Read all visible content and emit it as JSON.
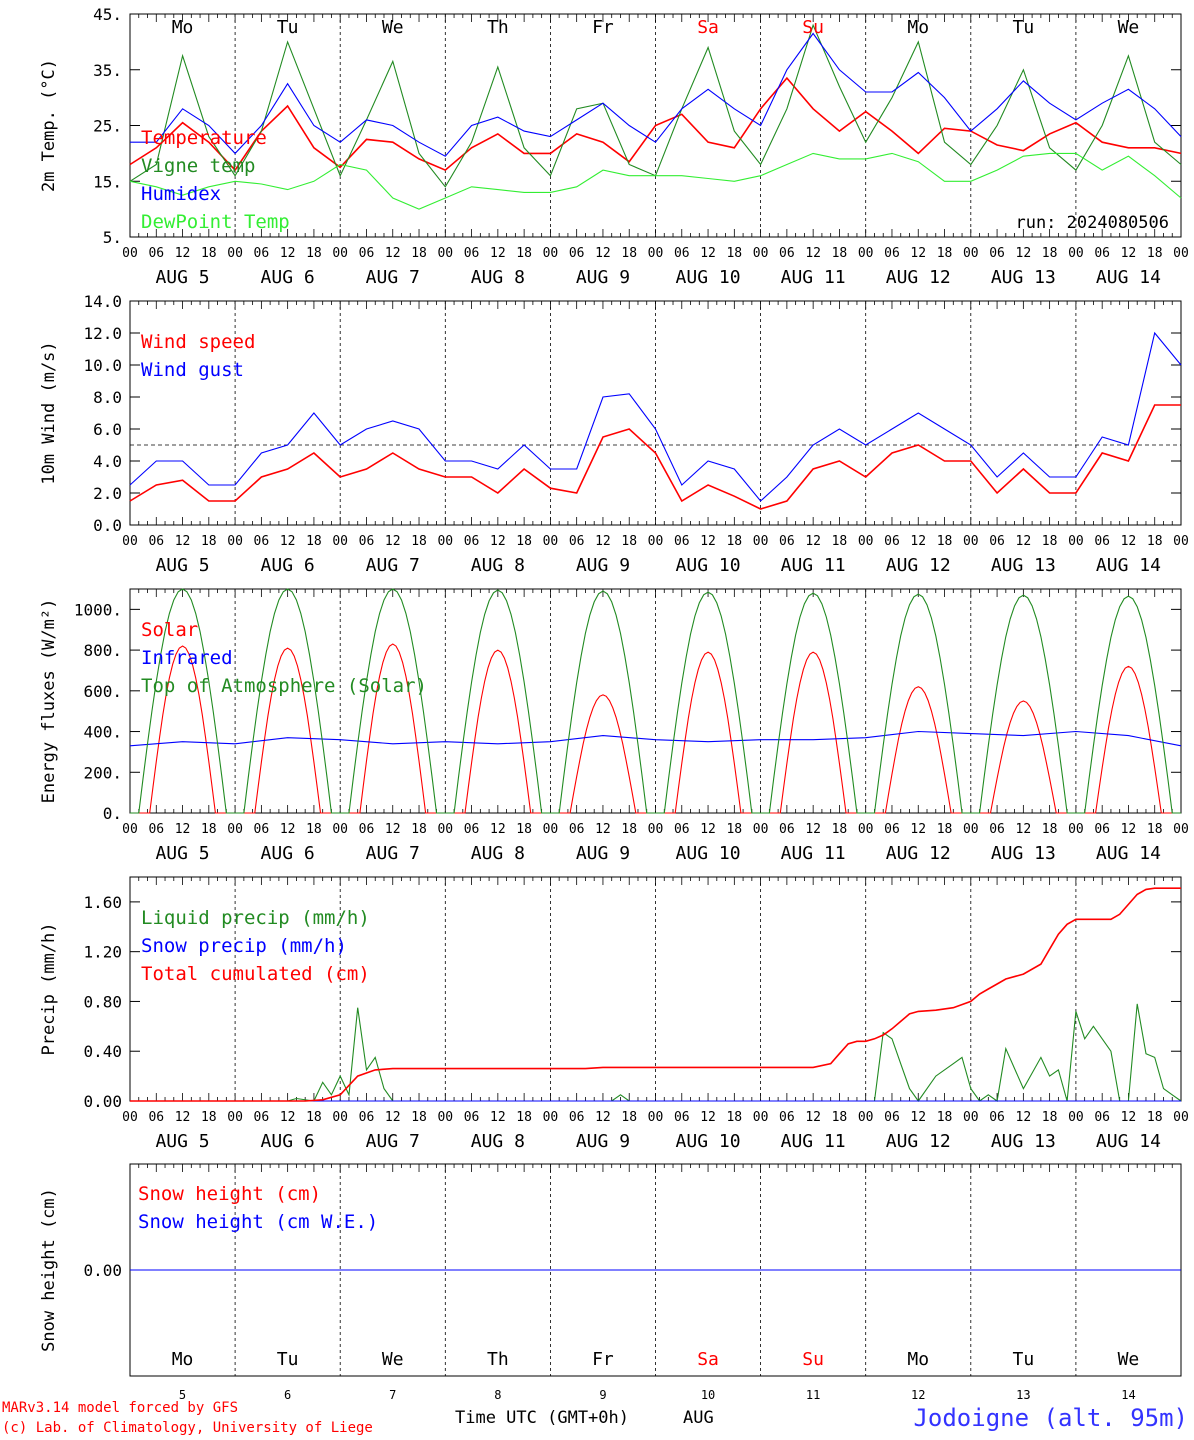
{
  "colors": {
    "temperature": "#ff0000",
    "vigne": "#228b22",
    "humidex": "#0000ff",
    "dewpoint": "#33ee33",
    "snow_height": "#ff0000",
    "snow_we": "#0000ff",
    "axis": "#000000",
    "weekend": "#ff0000",
    "station": "#3333ff"
  },
  "days": {
    "weekdays": [
      "Mo",
      "Tu",
      "We",
      "Th",
      "Fr",
      "Sa",
      "Su",
      "Mo",
      "Tu",
      "We"
    ],
    "weekend_flags": [
      false,
      false,
      false,
      false,
      false,
      true,
      true,
      false,
      false,
      false
    ],
    "date_labels": [
      "AUG  5",
      "AUG  6",
      "AUG  7",
      "AUG  8",
      "AUG  9",
      "AUG 10",
      "AUG 11",
      "AUG 12",
      "AUG 13",
      "AUG 14"
    ],
    "day_numbers": [
      "5",
      "6",
      "7",
      "8",
      "9",
      "10",
      "11",
      "12",
      "13",
      "14"
    ],
    "hour_labels": [
      "00",
      "06",
      "12",
      "18"
    ],
    "final_hour_label": "00"
  },
  "footer": {
    "xlabel": "Time UTC (GMT+0h)",
    "month": "AUG",
    "credit_line1": "MARv3.14 model forced by GFS",
    "credit_line2": "(c) Lab. of Climatology, University of Liege",
    "station": "Jodoigne (alt. 95m)"
  },
  "chart_data": [
    {
      "type": "line",
      "ylabel": "2m Temp. (°C)",
      "ylim": [
        5,
        45
      ],
      "yticks": [
        5,
        15,
        25,
        35,
        45
      ],
      "ytick_labels": [
        "5.",
        "15.",
        "25.",
        "35.",
        "45."
      ],
      "annotation": "run: 2024080506",
      "x_unit": "hours since AUG 5 00 UTC",
      "series": [
        {
          "name": "Temperature",
          "color": "#ff0000",
          "x": [
            0,
            6,
            12,
            18,
            24,
            30,
            36,
            42,
            48,
            54,
            60,
            66,
            72,
            78,
            84,
            90,
            96,
            102,
            108,
            114,
            120,
            126,
            132,
            138,
            144,
            150,
            156,
            162,
            168,
            174,
            180,
            186,
            192,
            198,
            204,
            210,
            216,
            222,
            228,
            234,
            240
          ],
          "y": [
            18,
            21,
            25.5,
            22,
            17,
            24,
            28.5,
            21,
            17.5,
            22.5,
            22,
            19,
            17,
            21,
            23.5,
            20,
            20,
            23.5,
            22,
            18.5,
            25,
            27,
            22,
            21,
            28,
            33.5,
            28,
            24,
            27.5,
            24,
            20,
            24.5,
            24,
            21.5,
            20.5,
            23.5,
            25.5,
            22,
            21,
            21,
            20
          ]
        },
        {
          "name": "Vigne temp",
          "color": "#228b22",
          "x": [
            0,
            6,
            12,
            18,
            24,
            30,
            36,
            42,
            48,
            54,
            60,
            66,
            72,
            78,
            84,
            90,
            96,
            102,
            108,
            114,
            120,
            126,
            132,
            138,
            144,
            150,
            156,
            162,
            168,
            174,
            180,
            186,
            192,
            198,
            204,
            210,
            216,
            222,
            228,
            234,
            240
          ],
          "y": [
            15,
            18,
            37.5,
            23,
            16,
            24,
            40,
            28,
            16,
            26,
            36.5,
            20,
            14,
            22,
            35.5,
            21,
            16,
            28,
            29,
            18,
            16,
            28,
            39,
            24,
            18,
            28,
            43,
            32,
            22,
            30,
            40,
            22,
            18,
            25,
            35,
            21,
            17,
            25,
            37.5,
            22,
            18
          ]
        },
        {
          "name": "Humidex",
          "color": "#0000ff",
          "x": [
            0,
            6,
            12,
            18,
            24,
            30,
            36,
            42,
            48,
            54,
            60,
            66,
            72,
            78,
            84,
            90,
            96,
            102,
            108,
            114,
            120,
            126,
            132,
            138,
            144,
            150,
            156,
            162,
            168,
            174,
            180,
            186,
            192,
            198,
            204,
            210,
            216,
            222,
            228,
            234,
            240
          ],
          "y": [
            22,
            22,
            28,
            25,
            20,
            25,
            32.5,
            25,
            22,
            26,
            25,
            22,
            19.5,
            25,
            26.5,
            24,
            23,
            26,
            29,
            25,
            22,
            28,
            31.5,
            28,
            25,
            35,
            41.5,
            35,
            31,
            31,
            34.5,
            30,
            24,
            28,
            33,
            29,
            26,
            29,
            31.5,
            28,
            23
          ]
        },
        {
          "name": "DewPoint Temp",
          "color": "#33ee33",
          "x": [
            0,
            6,
            12,
            18,
            24,
            30,
            36,
            42,
            48,
            54,
            60,
            66,
            72,
            78,
            84,
            90,
            96,
            102,
            108,
            114,
            120,
            126,
            132,
            138,
            144,
            150,
            156,
            162,
            168,
            174,
            180,
            186,
            192,
            198,
            204,
            210,
            216,
            222,
            228,
            234,
            240
          ],
          "y": [
            15,
            14,
            12.5,
            14,
            15,
            14.5,
            13.5,
            15,
            18,
            17,
            12,
            10,
            12,
            14,
            13.5,
            13,
            13,
            14,
            17,
            16,
            16,
            16,
            15.5,
            15,
            16,
            18,
            20,
            19,
            19,
            20,
            18.5,
            15,
            15,
            17,
            19.5,
            20,
            20,
            17,
            19.5,
            16,
            12
          ]
        }
      ]
    },
    {
      "type": "line",
      "ylabel": "10m Wind (m/s)",
      "ylim": [
        0,
        14
      ],
      "yticks": [
        0,
        2,
        4,
        6,
        8,
        10,
        12,
        14
      ],
      "ytick_labels": [
        "0.0",
        "2.0",
        "4.0",
        "6.0",
        "8.0",
        "10.0",
        "12.0",
        "14.0"
      ],
      "reference_line": 5,
      "series": [
        {
          "name": "Wind speed",
          "color": "#ff0000",
          "x": [
            0,
            6,
            12,
            18,
            24,
            30,
            36,
            42,
            48,
            54,
            60,
            66,
            72,
            78,
            84,
            90,
            96,
            102,
            108,
            114,
            120,
            126,
            132,
            138,
            144,
            150,
            156,
            162,
            168,
            174,
            180,
            186,
            192,
            198,
            204,
            210,
            216,
            222,
            228,
            234,
            240
          ],
          "y": [
            1.5,
            2.5,
            2.8,
            1.5,
            1.5,
            3,
            3.5,
            4.5,
            3,
            3.5,
            4.5,
            3.5,
            3,
            3,
            2,
            3.5,
            2.3,
            2,
            5.5,
            6,
            4.5,
            1.5,
            2.5,
            1.8,
            1,
            1.5,
            3.5,
            4,
            3,
            4.5,
            5,
            4,
            4,
            2,
            3.5,
            2,
            2,
            4.5,
            4,
            7.5,
            7.5
          ]
        },
        {
          "name": "Wind gust",
          "color": "#0000ff",
          "x": [
            0,
            6,
            12,
            18,
            24,
            30,
            36,
            42,
            48,
            54,
            60,
            66,
            72,
            78,
            84,
            90,
            96,
            102,
            108,
            114,
            120,
            126,
            132,
            138,
            144,
            150,
            156,
            162,
            168,
            174,
            180,
            186,
            192,
            198,
            204,
            210,
            216,
            222,
            228,
            234,
            240
          ],
          "y": [
            2.5,
            4,
            4,
            2.5,
            2.5,
            4.5,
            5,
            7,
            5,
            6,
            6.5,
            6,
            4,
            4,
            3.5,
            5,
            3.5,
            3.5,
            8,
            8.2,
            6,
            2.5,
            4,
            3.5,
            1.5,
            3,
            5,
            6,
            5,
            6,
            7,
            6,
            5,
            3,
            4.5,
            3,
            3,
            5.5,
            5,
            12,
            10
          ]
        }
      ]
    },
    {
      "type": "line",
      "ylabel": "Energy fluxes (W/m²)",
      "ylim": [
        0,
        1100
      ],
      "yticks": [
        0,
        200,
        400,
        600,
        800,
        1000
      ],
      "ytick_labels": [
        "0.",
        "200.",
        "400.",
        "600.",
        "800.",
        "1000."
      ],
      "series": [
        {
          "name": "Solar",
          "color": "#ff0000",
          "peaks": [
            820,
            810,
            830,
            800,
            580,
            790,
            790,
            620,
            550,
            720
          ],
          "day_start_hour": 4.5,
          "day_end_hour": 19.5
        },
        {
          "name": "Infrared",
          "color": "#0000ff",
          "x": [
            0,
            12,
            24,
            36,
            48,
            60,
            72,
            84,
            96,
            108,
            120,
            132,
            144,
            156,
            168,
            180,
            192,
            204,
            216,
            228,
            240
          ],
          "y": [
            330,
            350,
            340,
            370,
            360,
            340,
            350,
            340,
            350,
            380,
            360,
            350,
            360,
            360,
            370,
            400,
            390,
            380,
            400,
            380,
            330
          ]
        },
        {
          "name": "Top of Atmosphere (Solar)",
          "color": "#228b22",
          "peaks": [
            1100,
            1100,
            1100,
            1095,
            1090,
            1085,
            1080,
            1075,
            1070,
            1065
          ],
          "day_start_hour": 2,
          "day_end_hour": 22
        }
      ]
    },
    {
      "type": "line",
      "ylabel": "Precip (mm/h)",
      "ylim": [
        0,
        1.8
      ],
      "yticks": [
        0,
        0.4,
        0.8,
        1.2,
        1.6
      ],
      "ytick_labels": [
        "0.00",
        "0.40",
        "0.80",
        "1.20",
        "1.60"
      ],
      "series": [
        {
          "name": "Liquid precip (mm/h)",
          "color": "#228b22",
          "x": [
            0,
            36,
            38,
            42,
            44,
            46,
            48,
            50,
            52,
            54,
            56,
            58,
            60,
            62,
            64,
            66,
            110,
            112,
            114,
            170,
            172,
            174,
            176,
            178,
            180,
            184,
            188,
            190,
            192,
            194,
            196,
            198,
            200,
            204,
            208,
            210,
            212,
            214,
            216,
            218,
            220,
            224,
            226,
            228,
            230,
            232,
            234,
            236,
            238,
            240
          ],
          "y": [
            0,
            0,
            0.02,
            0,
            0.15,
            0.05,
            0.2,
            0.05,
            0.75,
            0.25,
            0.35,
            0.1,
            0,
            0,
            0,
            0,
            0,
            0.05,
            0,
            0,
            0.55,
            0.5,
            0.3,
            0.1,
            0,
            0.2,
            0.3,
            0.35,
            0.1,
            0,
            0.05,
            0,
            0.42,
            0.1,
            0.35,
            0.2,
            0.25,
            0,
            0.72,
            0.5,
            0.6,
            0.4,
            0,
            0,
            0.78,
            0.38,
            0.35,
            0.1,
            0.05,
            0
          ]
        },
        {
          "name": "Snow precip (mm/h)",
          "color": "#0000ff",
          "x": [
            0,
            240
          ],
          "y": [
            0,
            0
          ]
        },
        {
          "name": "Total cumulated (cm)",
          "color": "#ff0000",
          "x": [
            0,
            40,
            44,
            48,
            52,
            56,
            60,
            104,
            108,
            156,
            160,
            162,
            164,
            166,
            168,
            170,
            172,
            174,
            176,
            178,
            180,
            184,
            188,
            192,
            194,
            196,
            198,
            200,
            204,
            208,
            210,
            212,
            214,
            216,
            218,
            220,
            222,
            224,
            226,
            228,
            230,
            232,
            234,
            236,
            238,
            240
          ],
          "y": [
            0,
            0,
            0.01,
            0.05,
            0.2,
            0.25,
            0.26,
            0.26,
            0.27,
            0.27,
            0.3,
            0.38,
            0.46,
            0.48,
            0.48,
            0.5,
            0.53,
            0.58,
            0.64,
            0.7,
            0.72,
            0.73,
            0.75,
            0.8,
            0.86,
            0.9,
            0.94,
            0.98,
            1.02,
            1.1,
            1.22,
            1.34,
            1.42,
            1.46,
            1.46,
            1.46,
            1.46,
            1.46,
            1.5,
            1.58,
            1.66,
            1.7,
            1.71,
            1.71,
            1.71,
            1.71
          ]
        }
      ]
    },
    {
      "type": "line",
      "ylabel": "Snow height (cm)",
      "ylim": [
        -1,
        1
      ],
      "yticks": [
        0
      ],
      "ytick_labels": [
        "0.00"
      ],
      "series": [
        {
          "name": "Snow height (cm)",
          "color": "#ff0000",
          "x": [
            0,
            240
          ],
          "y": [
            0,
            0
          ]
        },
        {
          "name": "Snow height (cm W.E.)",
          "color": "#0000ff",
          "x": [
            0,
            240
          ],
          "y": [
            0,
            0
          ]
        }
      ]
    }
  ]
}
